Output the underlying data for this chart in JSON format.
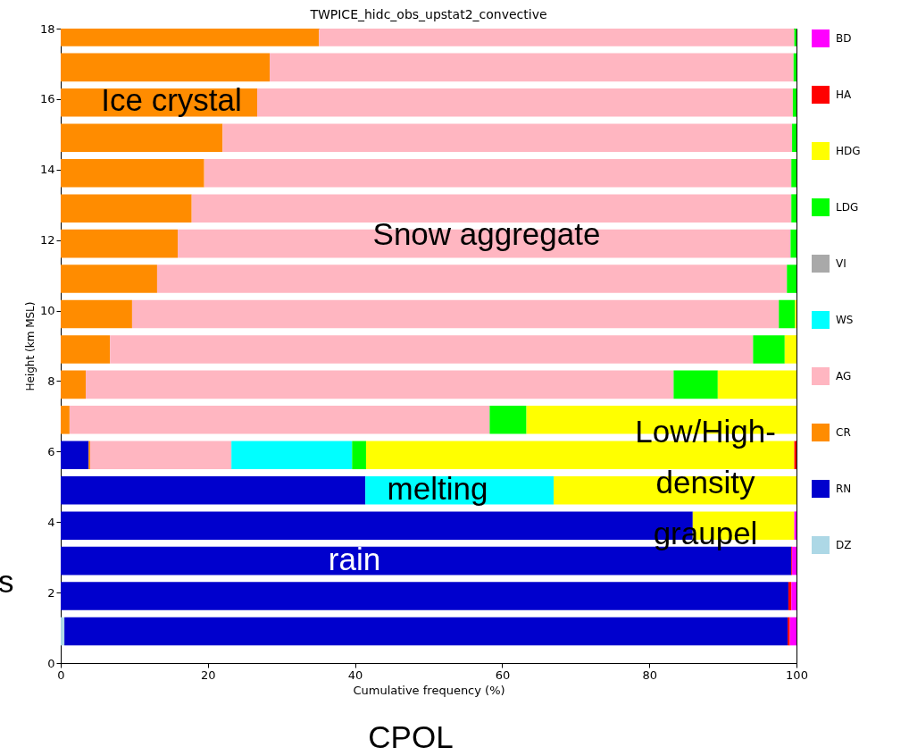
{
  "chart_data": {
    "type": "bar",
    "orientation": "horizontal",
    "stacked": true,
    "title": "TWPICE_hidc_obs_upstat2_convective",
    "xlabel": "Cumulative frequency (%)",
    "ylabel": "Height (km MSL)",
    "x": [
      0.9,
      1.9,
      2.9,
      3.9,
      4.9,
      5.9,
      6.9,
      7.9,
      8.9,
      9.9,
      10.9,
      11.9,
      12.9,
      13.9,
      14.9,
      15.9,
      16.9,
      17.9
    ],
    "xlim": [
      0,
      100
    ],
    "xticks": [
      0,
      20,
      40,
      60,
      80,
      100
    ],
    "ylim": [
      0,
      18
    ],
    "yticks": [
      0,
      2,
      4,
      6,
      8,
      10,
      12,
      14,
      16,
      18
    ],
    "grid": false,
    "legend": "right",
    "series": [
      {
        "name": "DZ",
        "color": "#add8e6",
        "values": [
          0.5,
          0,
          0,
          0,
          0,
          0,
          0,
          0,
          0,
          0,
          0,
          0,
          0,
          0,
          0,
          0,
          0,
          0
        ]
      },
      {
        "name": "RN",
        "color": "#0000cd",
        "values": [
          98.3,
          98.9,
          99.3,
          85.9,
          41.4,
          3.8,
          0,
          0,
          0,
          0,
          0,
          0,
          0,
          0,
          0,
          0,
          0,
          0
        ]
      },
      {
        "name": "CR",
        "color": "#ff8c00",
        "values": [
          0,
          0,
          0,
          0,
          0,
          0.2,
          1.2,
          3.4,
          6.7,
          9.7,
          13.1,
          15.9,
          17.8,
          19.5,
          22.0,
          26.7,
          28.4,
          35.1
        ]
      },
      {
        "name": "AG",
        "color": "#ffb6c1",
        "values": [
          0,
          0,
          0,
          0,
          0,
          19.2,
          57.1,
          79.9,
          87.4,
          87.9,
          85.6,
          83.3,
          81.5,
          79.8,
          77.4,
          72.8,
          71.2,
          64.6
        ]
      },
      {
        "name": "WS",
        "color": "#00ffff",
        "values": [
          0,
          0,
          0,
          0,
          25.6,
          16.4,
          0,
          0,
          0,
          0,
          0,
          0,
          0,
          0,
          0,
          0,
          0,
          0
        ]
      },
      {
        "name": "VI",
        "color": "#a9a9a9",
        "values": [
          0,
          0,
          0,
          0,
          0,
          0,
          0,
          0,
          0,
          0,
          0,
          0,
          0,
          0,
          0,
          0,
          0,
          0
        ]
      },
      {
        "name": "LDG",
        "color": "#00ff00",
        "values": [
          0,
          0,
          0,
          0,
          0,
          1.9,
          5.0,
          6.0,
          4.3,
          2.2,
          1.3,
          0.8,
          0.7,
          0.7,
          0.6,
          0.5,
          0.4,
          0.3
        ]
      },
      {
        "name": "HDG",
        "color": "#ffff00",
        "values": [
          0,
          0,
          0,
          13.8,
          33.0,
          58.2,
          36.7,
          10.7,
          1.6,
          0.2,
          0,
          0,
          0,
          0,
          0,
          0,
          0,
          0
        ]
      },
      {
        "name": "HA",
        "color": "#ff0000",
        "values": [
          0.3,
          0.4,
          0.1,
          0,
          0,
          0.3,
          0,
          0,
          0,
          0,
          0,
          0,
          0,
          0,
          0,
          0,
          0,
          0
        ]
      },
      {
        "name": "BD",
        "color": "#ff00ff",
        "values": [
          0.9,
          0.7,
          0.6,
          0.3,
          0,
          0,
          0,
          0,
          0,
          0,
          0,
          0,
          0,
          0,
          0,
          0,
          0,
          0
        ]
      }
    ],
    "annotations": [
      "Ice crystal",
      "Snow aggregate",
      "Low/High-\ndensity\ngraupel",
      "melting",
      "rain",
      "CPOL",
      "s"
    ]
  }
}
